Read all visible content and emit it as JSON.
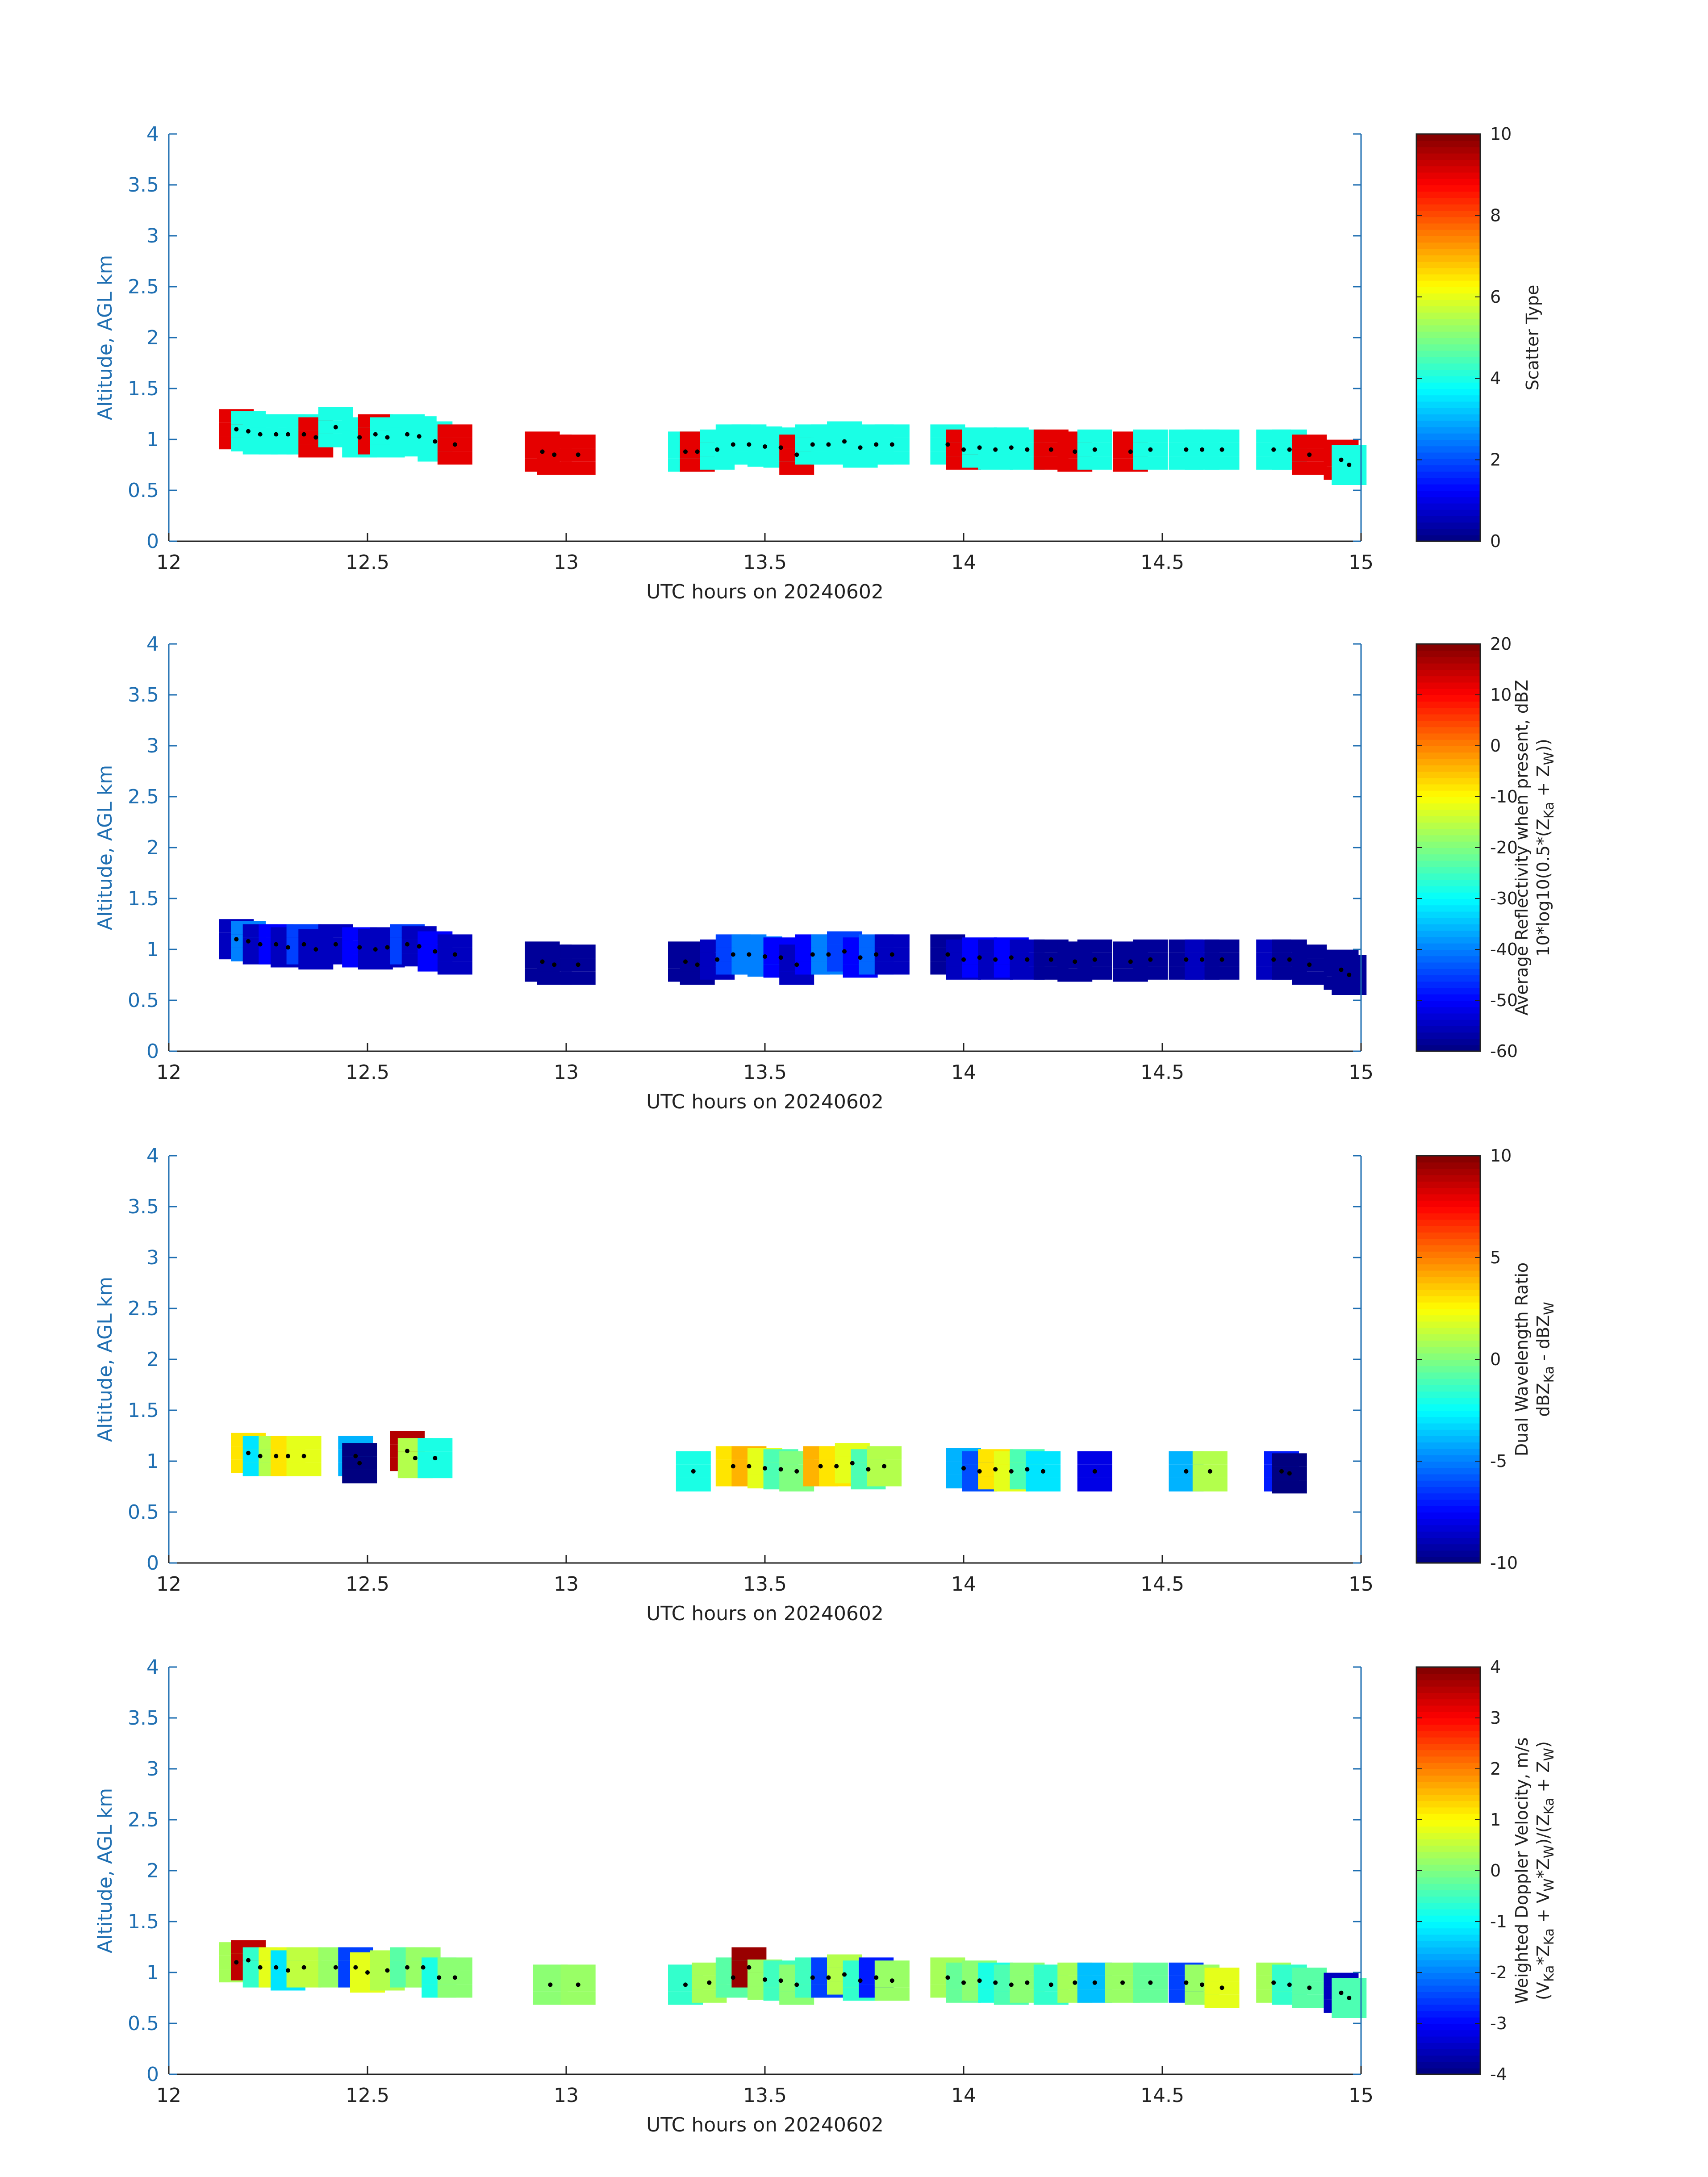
{
  "chart_data": [
    {
      "type": "heatmap",
      "xlabel": "UTC hours on 20240602",
      "ylabel": "Altitude, AGL km",
      "xlim": [
        12,
        15
      ],
      "ylim": [
        0,
        4
      ],
      "xticks": [
        "12",
        "12.5",
        "13",
        "13.5",
        "14",
        "14.5",
        "15"
      ],
      "yticks": [
        "0",
        "0.5",
        "1",
        "1.5",
        "2",
        "2.5",
        "3",
        "3.5",
        "4"
      ],
      "colorbar": {
        "label_lines": [
          "Scatter Type"
        ],
        "ticks": [
          "0",
          "2",
          "4",
          "6",
          "8",
          "10"
        ],
        "range": [
          0,
          10
        ],
        "colormap": "jet"
      },
      "cells": [
        [
          12.17,
          1.1,
          9
        ],
        [
          12.2,
          1.08,
          4
        ],
        [
          12.23,
          1.05,
          4
        ],
        [
          12.27,
          1.05,
          4
        ],
        [
          12.3,
          1.05,
          4
        ],
        [
          12.34,
          1.05,
          4
        ],
        [
          12.37,
          1.02,
          9
        ],
        [
          12.42,
          1.12,
          4
        ],
        [
          12.48,
          1.02,
          4
        ],
        [
          12.52,
          1.05,
          9
        ],
        [
          12.55,
          1.02,
          4
        ],
        [
          12.6,
          1.05,
          4
        ],
        [
          12.63,
          1.03,
          4
        ],
        [
          12.67,
          0.98,
          4
        ],
        [
          12.72,
          0.95,
          9
        ],
        [
          12.94,
          0.88,
          9
        ],
        [
          12.97,
          0.85,
          9
        ],
        [
          13.03,
          0.85,
          9
        ],
        [
          13.3,
          0.88,
          4
        ],
        [
          13.33,
          0.88,
          9
        ],
        [
          13.38,
          0.9,
          4
        ],
        [
          13.42,
          0.95,
          4
        ],
        [
          13.46,
          0.95,
          4
        ],
        [
          13.5,
          0.93,
          4
        ],
        [
          13.54,
          0.92,
          4
        ],
        [
          13.58,
          0.85,
          9
        ],
        [
          13.62,
          0.95,
          4
        ],
        [
          13.66,
          0.95,
          4
        ],
        [
          13.7,
          0.98,
          4
        ],
        [
          13.74,
          0.92,
          4
        ],
        [
          13.78,
          0.95,
          4
        ],
        [
          13.82,
          0.95,
          4
        ],
        [
          13.96,
          0.95,
          4
        ],
        [
          14.0,
          0.9,
          9
        ],
        [
          14.04,
          0.92,
          4
        ],
        [
          14.08,
          0.9,
          4
        ],
        [
          14.12,
          0.92,
          4
        ],
        [
          14.16,
          0.9,
          4
        ],
        [
          14.22,
          0.9,
          9
        ],
        [
          14.28,
          0.88,
          9
        ],
        [
          14.33,
          0.9,
          4
        ],
        [
          14.42,
          0.88,
          9
        ],
        [
          14.47,
          0.9,
          4
        ],
        [
          14.56,
          0.9,
          4
        ],
        [
          14.6,
          0.9,
          4
        ],
        [
          14.65,
          0.9,
          4
        ],
        [
          14.78,
          0.9,
          4
        ],
        [
          14.82,
          0.9,
          4
        ],
        [
          14.87,
          0.85,
          9
        ],
        [
          14.95,
          0.8,
          9
        ],
        [
          14.97,
          0.75,
          4
        ]
      ]
    },
    {
      "type": "heatmap",
      "xlabel": "UTC hours on 20240602",
      "ylabel": "Altitude, AGL km",
      "xlim": [
        12,
        15
      ],
      "ylim": [
        0,
        4
      ],
      "xticks": [
        "12",
        "12.5",
        "13",
        "13.5",
        "14",
        "14.5",
        "15"
      ],
      "yticks": [
        "0",
        "0.5",
        "1",
        "1.5",
        "2",
        "2.5",
        "3",
        "3.5",
        "4"
      ],
      "colorbar": {
        "label_lines": [
          "Average Reflectivity when present, dBZ",
          "10*log10(0.5*(Z_Ka + Z_W))"
        ],
        "ticks": [
          "-60",
          "-50",
          "-40",
          "-30",
          "-20",
          "-10",
          "0",
          "10",
          "20"
        ],
        "range": [
          -60,
          20
        ],
        "colormap": "jet"
      },
      "cells": [
        [
          12.17,
          1.1,
          -55
        ],
        [
          12.2,
          1.08,
          -40
        ],
        [
          12.23,
          1.05,
          -55
        ],
        [
          12.27,
          1.05,
          -50
        ],
        [
          12.3,
          1.02,
          -55
        ],
        [
          12.34,
          1.05,
          -45
        ],
        [
          12.37,
          1.0,
          -55
        ],
        [
          12.42,
          1.05,
          -55
        ],
        [
          12.48,
          1.02,
          -50
        ],
        [
          12.52,
          1.0,
          -55
        ],
        [
          12.55,
          1.02,
          -55
        ],
        [
          12.6,
          1.05,
          -45
        ],
        [
          12.63,
          1.03,
          -55
        ],
        [
          12.67,
          0.98,
          -50
        ],
        [
          12.72,
          0.95,
          -55
        ],
        [
          12.94,
          0.88,
          -58
        ],
        [
          12.97,
          0.85,
          -58
        ],
        [
          13.03,
          0.85,
          -58
        ],
        [
          13.3,
          0.88,
          -58
        ],
        [
          13.33,
          0.85,
          -58
        ],
        [
          13.38,
          0.9,
          -55
        ],
        [
          13.42,
          0.95,
          -45
        ],
        [
          13.46,
          0.95,
          -40
        ],
        [
          13.5,
          0.93,
          -40
        ],
        [
          13.54,
          0.92,
          -50
        ],
        [
          13.58,
          0.85,
          -55
        ],
        [
          13.62,
          0.95,
          -50
        ],
        [
          13.66,
          0.95,
          -40
        ],
        [
          13.7,
          0.98,
          -45
        ],
        [
          13.74,
          0.92,
          -50
        ],
        [
          13.78,
          0.95,
          -42
        ],
        [
          13.82,
          0.95,
          -55
        ],
        [
          13.96,
          0.95,
          -58
        ],
        [
          14.0,
          0.9,
          -55
        ],
        [
          14.04,
          0.92,
          -50
        ],
        [
          14.08,
          0.9,
          -55
        ],
        [
          14.12,
          0.92,
          -50
        ],
        [
          14.16,
          0.9,
          -55
        ],
        [
          14.22,
          0.9,
          -58
        ],
        [
          14.28,
          0.88,
          -58
        ],
        [
          14.33,
          0.9,
          -58
        ],
        [
          14.42,
          0.88,
          -58
        ],
        [
          14.47,
          0.9,
          -58
        ],
        [
          14.56,
          0.9,
          -58
        ],
        [
          14.6,
          0.9,
          -55
        ],
        [
          14.65,
          0.9,
          -58
        ],
        [
          14.78,
          0.9,
          -55
        ],
        [
          14.82,
          0.9,
          -58
        ],
        [
          14.87,
          0.85,
          -58
        ],
        [
          14.95,
          0.8,
          -58
        ],
        [
          14.97,
          0.75,
          -58
        ]
      ]
    },
    {
      "type": "heatmap",
      "xlabel": "UTC hours on 20240602",
      "ylabel": "Altitude, AGL km",
      "xlim": [
        12,
        15
      ],
      "ylim": [
        0,
        4
      ],
      "xticks": [
        "12",
        "12.5",
        "13",
        "13.5",
        "14",
        "14.5",
        "15"
      ],
      "yticks": [
        "0",
        "0.5",
        "1",
        "1.5",
        "2",
        "2.5",
        "3",
        "3.5",
        "4"
      ],
      "colorbar": {
        "label_lines": [
          "Dual Wavelength Ratio",
          "dBZ_Ka - dBZ_W"
        ],
        "ticks": [
          "-10",
          "-5",
          "0",
          "5",
          "10"
        ],
        "range": [
          -10,
          10
        ],
        "colormap": "jet"
      },
      "cells": [
        [
          12.2,
          1.08,
          3
        ],
        [
          12.23,
          1.05,
          -3
        ],
        [
          12.27,
          1.05,
          1
        ],
        [
          12.3,
          1.05,
          3
        ],
        [
          12.34,
          1.05,
          2
        ],
        [
          12.47,
          1.05,
          -4
        ],
        [
          12.48,
          0.98,
          -10
        ],
        [
          12.6,
          1.1,
          9
        ],
        [
          12.62,
          1.03,
          1
        ],
        [
          12.67,
          1.03,
          -2
        ],
        [
          13.32,
          0.9,
          -2
        ],
        [
          13.42,
          0.95,
          3
        ],
        [
          13.46,
          0.95,
          4
        ],
        [
          13.5,
          0.93,
          2
        ],
        [
          13.54,
          0.92,
          -1
        ],
        [
          13.58,
          0.9,
          0
        ],
        [
          13.64,
          0.95,
          4
        ],
        [
          13.68,
          0.95,
          3
        ],
        [
          13.72,
          0.98,
          2
        ],
        [
          13.76,
          0.92,
          -1
        ],
        [
          13.8,
          0.95,
          1
        ],
        [
          14.0,
          0.93,
          -4
        ],
        [
          14.04,
          0.9,
          -6
        ],
        [
          14.08,
          0.92,
          3
        ],
        [
          14.12,
          0.9,
          2
        ],
        [
          14.16,
          0.92,
          -1
        ],
        [
          14.2,
          0.9,
          -3
        ],
        [
          14.33,
          0.9,
          -8
        ],
        [
          14.56,
          0.9,
          -4
        ],
        [
          14.62,
          0.9,
          1
        ],
        [
          14.8,
          0.9,
          -7
        ],
        [
          14.82,
          0.88,
          -10
        ]
      ]
    },
    {
      "type": "heatmap",
      "xlabel": "UTC hours on 20240602",
      "ylabel": "Altitude, AGL km",
      "xlim": [
        12,
        15
      ],
      "ylim": [
        0,
        4
      ],
      "xticks": [
        "12",
        "12.5",
        "13",
        "13.5",
        "14",
        "14.5",
        "15"
      ],
      "yticks": [
        "0",
        "0.5",
        "1",
        "1.5",
        "2",
        "2.5",
        "3",
        "3.5",
        "4"
      ],
      "colorbar": {
        "label_lines": [
          "Weighted Doppler Velocity, m/s",
          "(V_Ka*Z_Ka + V_W*Z_W)/(Z_Ka + Z_W)"
        ],
        "ticks": [
          "-4",
          "-3",
          "-2",
          "-1",
          "0",
          "1",
          "2",
          "3",
          "4"
        ],
        "range": [
          -4,
          4
        ],
        "colormap": "jet"
      },
      "cells": [
        [
          12.17,
          1.1,
          0.3
        ],
        [
          12.2,
          1.12,
          3.5
        ],
        [
          12.23,
          1.05,
          -0.6
        ],
        [
          12.27,
          1.05,
          0.8
        ],
        [
          12.3,
          1.02,
          -1.2
        ],
        [
          12.34,
          1.05,
          0.5
        ],
        [
          12.42,
          1.05,
          0.2
        ],
        [
          12.47,
          1.05,
          -2.5
        ],
        [
          12.5,
          1.0,
          0.8
        ],
        [
          12.55,
          1.02,
          0.4
        ],
        [
          12.6,
          1.05,
          -0.3
        ],
        [
          12.64,
          1.05,
          0.2
        ],
        [
          12.68,
          0.95,
          -0.8
        ],
        [
          12.72,
          0.95,
          0.1
        ],
        [
          12.96,
          0.88,
          0.1
        ],
        [
          13.03,
          0.88,
          0.2
        ],
        [
          13.3,
          0.88,
          -0.6
        ],
        [
          13.36,
          0.9,
          0.3
        ],
        [
          13.42,
          0.95,
          -0.3
        ],
        [
          13.46,
          1.05,
          3.8
        ],
        [
          13.5,
          0.93,
          0.2
        ],
        [
          13.54,
          0.92,
          -0.5
        ],
        [
          13.58,
          0.88,
          0.1
        ],
        [
          13.62,
          0.95,
          -0.5
        ],
        [
          13.66,
          0.95,
          -2.5
        ],
        [
          13.7,
          0.98,
          0.4
        ],
        [
          13.74,
          0.92,
          -0.6
        ],
        [
          13.78,
          0.95,
          -2.8
        ],
        [
          13.82,
          0.92,
          0.2
        ],
        [
          13.96,
          0.95,
          0.3
        ],
        [
          14.0,
          0.9,
          -0.2
        ],
        [
          14.04,
          0.92,
          0.1
        ],
        [
          14.08,
          0.9,
          -0.8
        ],
        [
          14.12,
          0.88,
          -0.4
        ],
        [
          14.16,
          0.9,
          0.1
        ],
        [
          14.22,
          0.88,
          -0.6
        ],
        [
          14.28,
          0.9,
          0.3
        ],
        [
          14.33,
          0.9,
          -1.5
        ],
        [
          14.4,
          0.9,
          0.2
        ],
        [
          14.47,
          0.9,
          -0.2
        ],
        [
          14.56,
          0.9,
          -2.5
        ],
        [
          14.6,
          0.88,
          0.2
        ],
        [
          14.65,
          0.85,
          0.8
        ],
        [
          14.78,
          0.9,
          0.3
        ],
        [
          14.82,
          0.88,
          -0.6
        ],
        [
          14.87,
          0.85,
          -0.3
        ],
        [
          14.95,
          0.8,
          -3.5
        ],
        [
          14.97,
          0.75,
          -0.4
        ]
      ]
    }
  ]
}
